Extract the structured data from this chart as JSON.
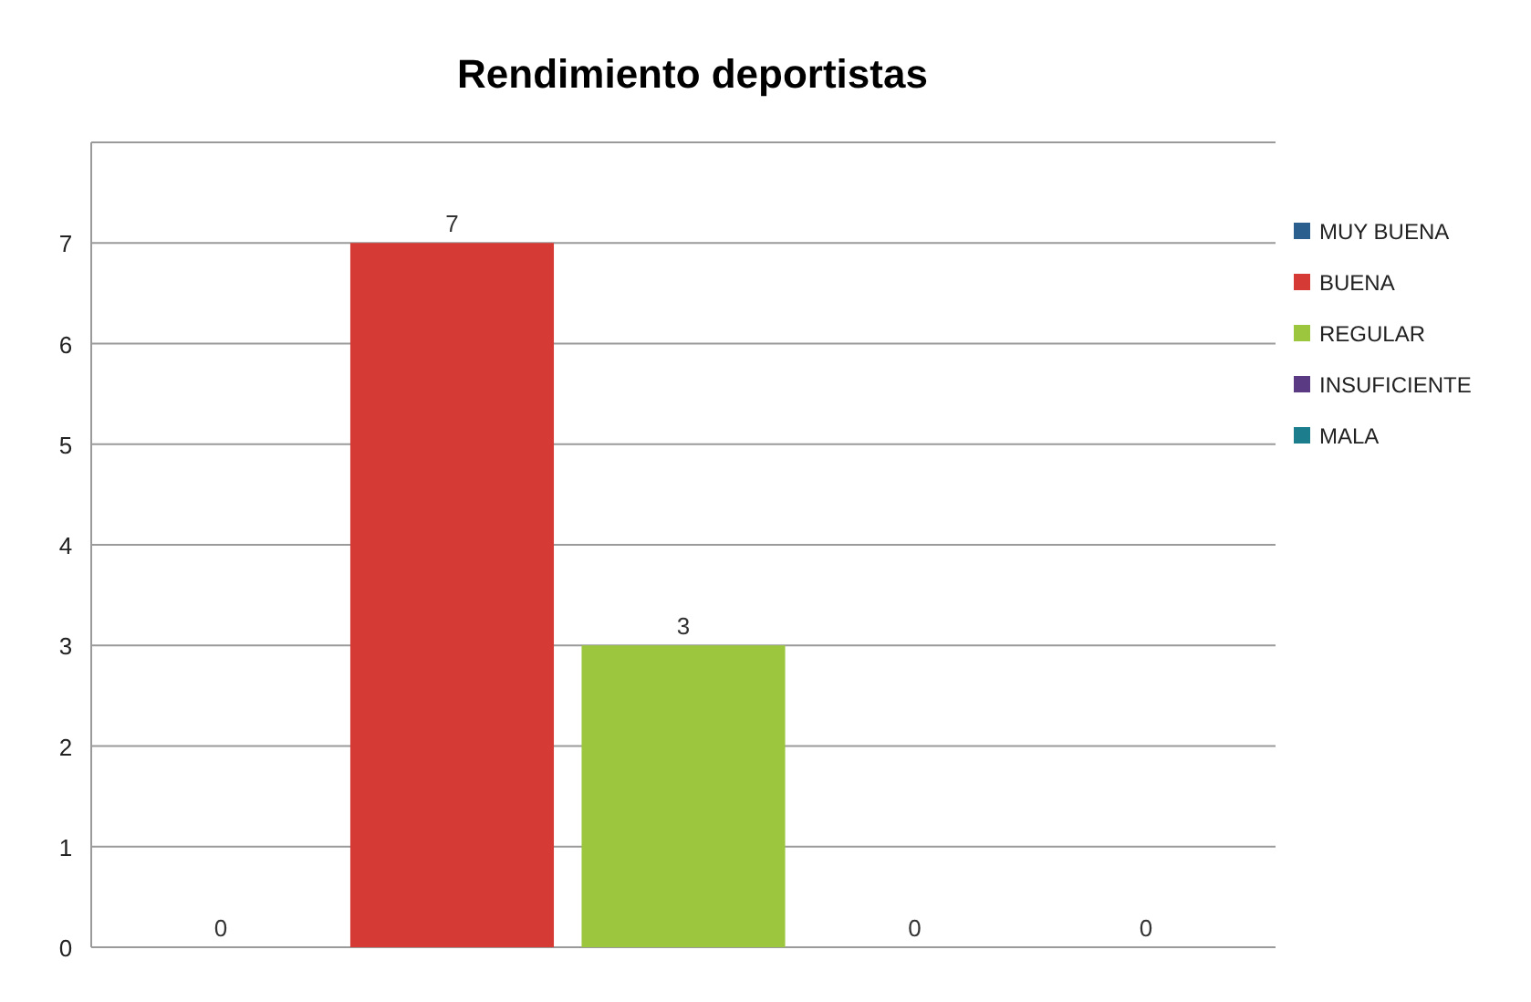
{
  "chart_data": {
    "type": "bar",
    "title": "Rendimiento deportistas",
    "categories": [
      null,
      null,
      null,
      null,
      null
    ],
    "series": [
      {
        "name": "MUY BUENA",
        "color": "#2b5f8e",
        "values": [
          0,
          null,
          null,
          null,
          null
        ]
      },
      {
        "name": "BUENA",
        "color": "#d63a34",
        "values": [
          null,
          7,
          null,
          null,
          null
        ]
      },
      {
        "name": "REGULAR",
        "color": "#9cc63e",
        "values": [
          null,
          null,
          3,
          null,
          null
        ]
      },
      {
        "name": "INSUFICIENTE",
        "color": "#5a3a82",
        "values": [
          null,
          null,
          null,
          0,
          null
        ]
      },
      {
        "name": "MALA",
        "color": "#1c7d8c",
        "values": [
          null,
          null,
          null,
          null,
          0
        ]
      }
    ],
    "ylim": [
      0,
      8
    ],
    "yticks": [
      0,
      1,
      2,
      3,
      4,
      5,
      6,
      7,
      {
        "value": 8,
        "label": null
      }
    ],
    "grid": "y",
    "legend": "right",
    "data_labels": true
  }
}
